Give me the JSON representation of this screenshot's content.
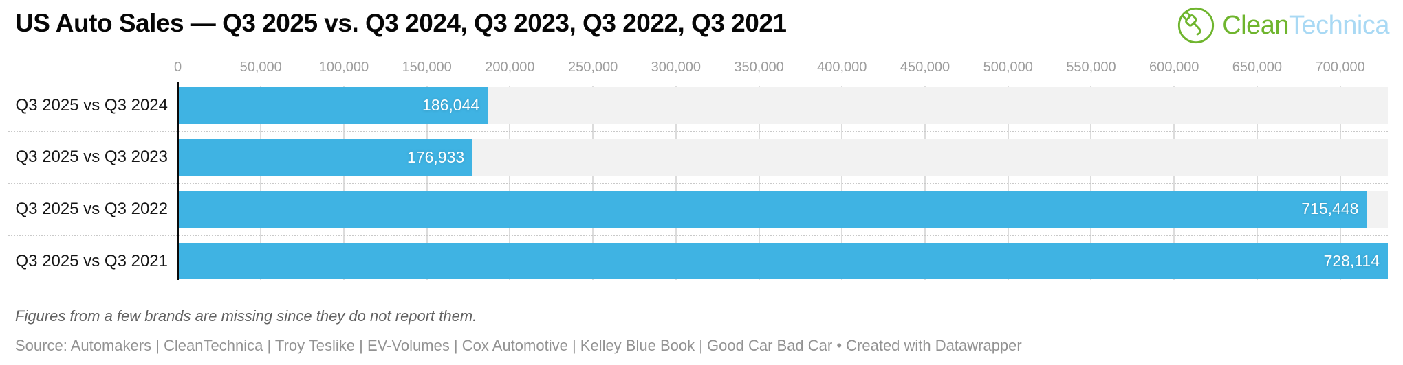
{
  "header": {
    "title": "US Auto Sales — Q3 2025 vs. Q3 2024, Q3 2023, Q3 2022, Q3 2021",
    "logo": {
      "clean": "Clean",
      "technica": "Technica",
      "icon": "plug-leaf-circle-icon",
      "green": "#6fb52e",
      "light_blue": "#a9d9f4"
    }
  },
  "chart_data": {
    "type": "bar",
    "orientation": "horizontal",
    "title": "US Auto Sales — Q3 2025 vs. Q3 2024, Q3 2023, Q3 2022, Q3 2021",
    "categories": [
      "Q3 2025 vs Q3 2024",
      "Q3 2025 vs Q3 2023",
      "Q3 2025 vs Q3 2022",
      "Q3 2025 vs Q3 2021"
    ],
    "values": [
      186044,
      176933,
      715448,
      728114
    ],
    "value_labels": [
      "186,044",
      "176,933",
      "715,448",
      "728,114"
    ],
    "xlim": [
      0,
      728114
    ],
    "x_ticks": [
      0,
      50000,
      100000,
      150000,
      200000,
      250000,
      300000,
      350000,
      400000,
      450000,
      500000,
      550000,
      600000,
      650000,
      700000
    ],
    "x_tick_labels": [
      "0",
      "50,000",
      "100,000",
      "150,000",
      "200,000",
      "250,000",
      "300,000",
      "350,000",
      "400,000",
      "450,000",
      "500,000",
      "550,000",
      "600,000",
      "650,000",
      "700,000"
    ],
    "grid": true,
    "legend": "none",
    "bar_color": "#3fb3e3",
    "band_color": "#f2f2f2",
    "axis_color": "#0a0a0a",
    "value_label_color": "#ffffff"
  },
  "footnote": "Figures from a few brands are missing since they do not report them.",
  "source": "Source: Automakers | CleanTechnica | Troy Teslike | EV-Volumes | Cox Automotive | Kelley Blue Book | Good Car Bad Car • Created with Datawrapper"
}
